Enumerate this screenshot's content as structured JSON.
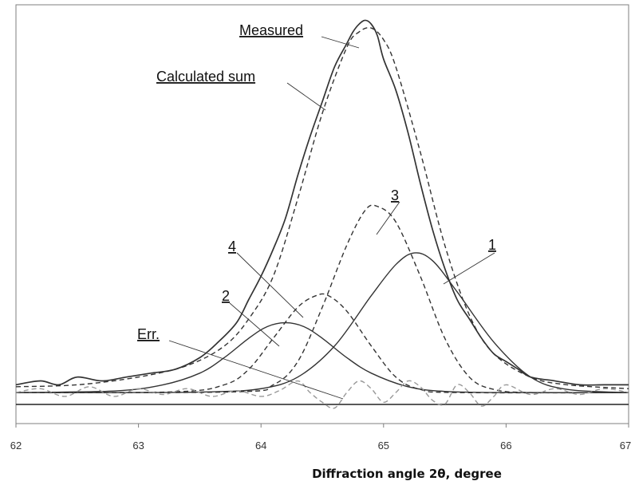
{
  "chart_data": {
    "type": "line",
    "title": "",
    "xlabel": "Diffraction angle 2θ, degree",
    "ylabel": "",
    "xlim": [
      62,
      67
    ],
    "ylim": [
      -0.08,
      1.0
    ],
    "x_ticks": [
      "62",
      "63",
      "64",
      "65",
      "66",
      "67"
    ],
    "grid": false,
    "legend": "none",
    "series": [
      {
        "name": "Measured",
        "style": "solid",
        "color": "#333333",
        "x": [
          62.0,
          62.2,
          62.35,
          62.5,
          62.7,
          62.9,
          63.1,
          63.3,
          63.5,
          63.65,
          63.8,
          63.9,
          64.0,
          64.1,
          64.2,
          64.3,
          64.4,
          64.5,
          64.6,
          64.7,
          64.75,
          64.8,
          64.85,
          64.9,
          64.95,
          65.0,
          65.1,
          65.2,
          65.3,
          65.4,
          65.5,
          65.6,
          65.7,
          65.8,
          65.9,
          66.0,
          66.1,
          66.2,
          66.4,
          66.6,
          66.8,
          67.0
        ],
        "y": [
          0.02,
          0.03,
          0.02,
          0.04,
          0.03,
          0.04,
          0.05,
          0.06,
          0.09,
          0.13,
          0.18,
          0.24,
          0.3,
          0.37,
          0.45,
          0.56,
          0.66,
          0.75,
          0.84,
          0.9,
          0.93,
          0.95,
          0.96,
          0.95,
          0.92,
          0.86,
          0.78,
          0.67,
          0.54,
          0.42,
          0.32,
          0.24,
          0.19,
          0.14,
          0.1,
          0.08,
          0.06,
          0.04,
          0.03,
          0.02,
          0.02,
          0.02
        ]
      },
      {
        "name": "Calculated sum",
        "style": "dashed",
        "color": "#333333",
        "x": [
          62.0,
          62.5,
          63.0,
          63.4,
          63.7,
          63.9,
          64.1,
          64.3,
          64.5,
          64.7,
          64.8,
          64.9,
          65.0,
          65.1,
          65.3,
          65.5,
          65.7,
          65.9,
          66.2,
          66.5,
          67.0
        ],
        "y": [
          0.015,
          0.02,
          0.04,
          0.07,
          0.12,
          0.19,
          0.3,
          0.5,
          0.72,
          0.89,
          0.93,
          0.94,
          0.91,
          0.84,
          0.62,
          0.38,
          0.2,
          0.1,
          0.04,
          0.02,
          0.01
        ]
      },
      {
        "name": "1",
        "style": "solid",
        "color": "#333333",
        "x": [
          62.0,
          63.0,
          63.6,
          64.0,
          64.3,
          64.6,
          64.9,
          65.1,
          65.25,
          65.4,
          65.6,
          65.9,
          66.2,
          66.5,
          67.0
        ],
        "y": [
          0,
          0,
          0.002,
          0.01,
          0.04,
          0.12,
          0.25,
          0.33,
          0.36,
          0.34,
          0.26,
          0.13,
          0.04,
          0.008,
          0
        ]
      },
      {
        "name": "2",
        "style": "solid",
        "color": "#333333",
        "x": [
          62.0,
          62.8,
          63.2,
          63.5,
          63.7,
          63.9,
          64.05,
          64.2,
          64.35,
          64.5,
          64.7,
          64.9,
          65.2,
          65.5,
          66.0,
          67.0
        ],
        "y": [
          0,
          0.004,
          0.02,
          0.05,
          0.09,
          0.14,
          0.17,
          0.18,
          0.17,
          0.14,
          0.09,
          0.05,
          0.015,
          0.003,
          0,
          0
        ]
      },
      {
        "name": "3",
        "style": "dashed",
        "color": "#333333",
        "x": [
          62.0,
          63.8,
          64.1,
          64.3,
          64.5,
          64.7,
          64.85,
          64.95,
          65.1,
          65.3,
          65.5,
          65.7,
          65.9,
          66.2,
          67.0
        ],
        "y": [
          0,
          0.002,
          0.02,
          0.08,
          0.22,
          0.38,
          0.47,
          0.48,
          0.44,
          0.3,
          0.14,
          0.04,
          0.008,
          0,
          0
        ]
      },
      {
        "name": "4",
        "style": "dashed",
        "color": "#333333",
        "x": [
          62.0,
          63.3,
          63.7,
          63.9,
          64.1,
          64.3,
          64.45,
          64.55,
          64.7,
          64.9,
          65.1,
          65.3,
          65.6,
          67.0
        ],
        "y": [
          0,
          0.002,
          0.02,
          0.06,
          0.14,
          0.22,
          0.25,
          0.25,
          0.21,
          0.12,
          0.04,
          0.008,
          0,
          0
        ]
      },
      {
        "name": "Err.",
        "style": "dashed",
        "color": "#999999",
        "x": [
          62.0,
          62.2,
          62.4,
          62.6,
          62.8,
          63.0,
          63.2,
          63.4,
          63.6,
          63.8,
          64.0,
          64.15,
          64.3,
          64.4,
          64.5,
          64.6,
          64.7,
          64.8,
          64.9,
          65.0,
          65.1,
          65.2,
          65.3,
          65.4,
          65.5,
          65.6,
          65.7,
          65.8,
          65.9,
          66.0,
          66.2,
          66.4,
          66.6,
          66.8,
          67.0
        ],
        "y": [
          0.0,
          0.01,
          -0.01,
          0.015,
          -0.01,
          0.01,
          -0.005,
          0.01,
          -0.01,
          0.005,
          -0.01,
          0.005,
          0.03,
          0.0,
          -0.025,
          -0.04,
          0.0,
          0.03,
          0.01,
          -0.025,
          0.0,
          0.03,
          0.015,
          -0.02,
          -0.03,
          0.02,
          0.0,
          -0.035,
          -0.01,
          0.02,
          -0.005,
          0.01,
          -0.005,
          0.01,
          0.0
        ]
      }
    ],
    "annotations": [
      {
        "text": "Measured",
        "target_series": "Measured"
      },
      {
        "text": "Calculated sum",
        "target_series": "Calculated sum"
      },
      {
        "text": "3",
        "target_series": "3"
      },
      {
        "text": "4",
        "target_series": "4"
      },
      {
        "text": "1",
        "target_series": "1"
      },
      {
        "text": "2",
        "target_series": "2"
      },
      {
        "text": "Err.",
        "target_series": "Err."
      }
    ]
  }
}
